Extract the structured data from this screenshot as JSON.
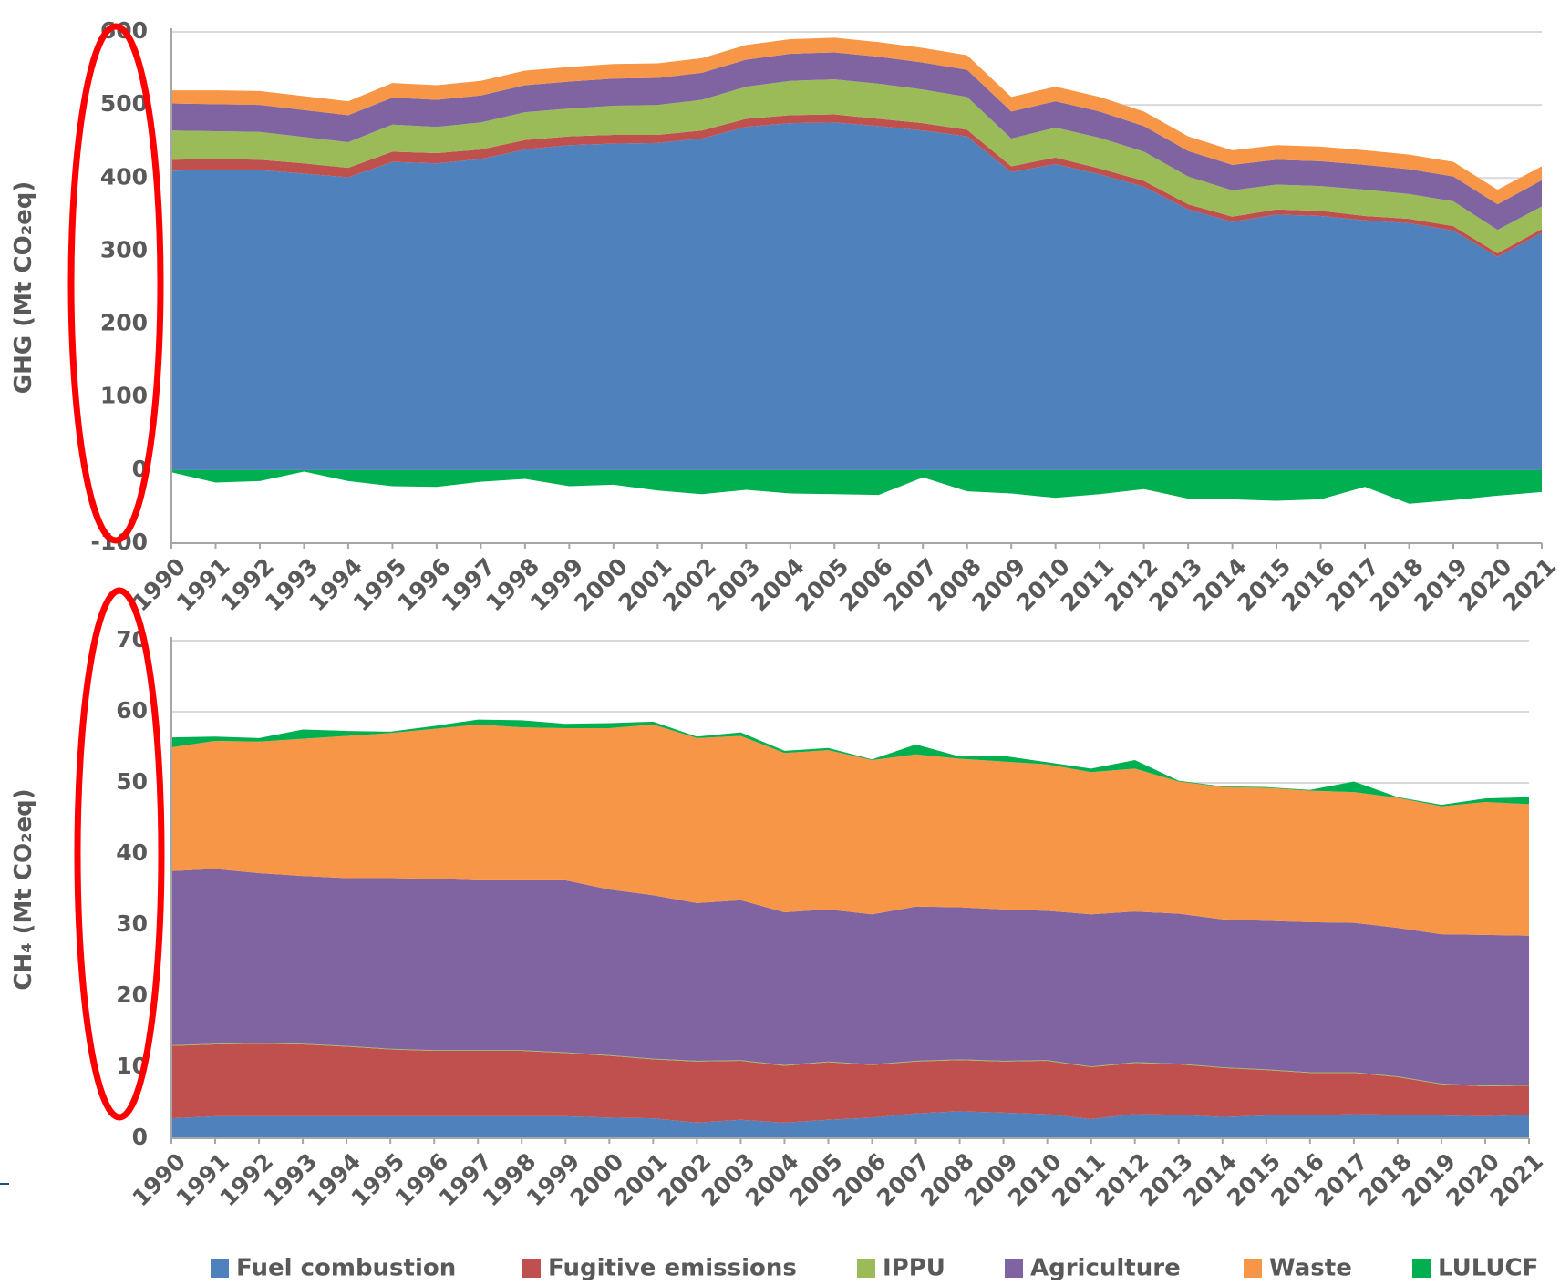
{
  "chart_data": [
    {
      "type": "stacked-area",
      "y_label": "GHG (Mt CO₂eq)",
      "x": [
        1990,
        1991,
        1992,
        1993,
        1994,
        1995,
        1996,
        1997,
        1998,
        1999,
        2000,
        2001,
        2002,
        2003,
        2004,
        2005,
        2006,
        2007,
        2008,
        2009,
        2010,
        2011,
        2012,
        2013,
        2014,
        2015,
        2016,
        2017,
        2018,
        2019,
        2020,
        2021
      ],
      "xlim": [
        1990,
        2021
      ],
      "xticks": [
        1990,
        1991,
        1992,
        1993,
        1994,
        1995,
        1996,
        1997,
        1998,
        1999,
        2000,
        2001,
        2002,
        2003,
        2004,
        2005,
        2006,
        2007,
        2008,
        2009,
        2010,
        2011,
        2012,
        2013,
        2014,
        2015,
        2016,
        2017,
        2018,
        2019,
        2020,
        2021
      ],
      "ylim": [
        -100,
        600
      ],
      "yticks": [
        -100,
        0,
        100,
        200,
        300,
        400,
        500,
        600
      ],
      "grid": true,
      "series": [
        {
          "name": "Fuel combustion",
          "color": "#4f81bd",
          "values": [
            410,
            411,
            411,
            406,
            401,
            422,
            420,
            426,
            439,
            445,
            447,
            448,
            454,
            470,
            475,
            476,
            471,
            465,
            457,
            408,
            419,
            405,
            388,
            357,
            340,
            350,
            348,
            342,
            338,
            328,
            292,
            325
          ]
        },
        {
          "name": "Fugitive emissions",
          "color": "#c0504d",
          "values": [
            15,
            15,
            14,
            14,
            13,
            14,
            14,
            13,
            13,
            12,
            12,
            11,
            11,
            11,
            11,
            11,
            10,
            10,
            9,
            8,
            9,
            8,
            8,
            7,
            7,
            7,
            7,
            6,
            6,
            6,
            5,
            5
          ]
        },
        {
          "name": "IPPU",
          "color": "#9bbb59",
          "values": [
            40,
            38,
            38,
            36,
            35,
            37,
            36,
            37,
            38,
            38,
            40,
            41,
            42,
            44,
            47,
            48,
            48,
            46,
            45,
            38,
            41,
            42,
            40,
            38,
            36,
            34,
            34,
            36,
            34,
            34,
            32,
            31
          ]
        },
        {
          "name": "Agriculture",
          "color": "#8064a2",
          "values": [
            37,
            37,
            37,
            37,
            37,
            37,
            37,
            37,
            37,
            37,
            37,
            37,
            37,
            37,
            37,
            37,
            37,
            37,
            37,
            37,
            36,
            36,
            35,
            35,
            35,
            34,
            34,
            34,
            34,
            34,
            35,
            36
          ]
        },
        {
          "name": "Waste",
          "color": "#f79646",
          "values": [
            18,
            19,
            19,
            19,
            19,
            20,
            20,
            20,
            20,
            20,
            20,
            20,
            20,
            20,
            20,
            20,
            20,
            20,
            20,
            20,
            20,
            20,
            20,
            20,
            20,
            20,
            20,
            20,
            20,
            20,
            20,
            19
          ]
        },
        {
          "name": "LULUCF",
          "color": "#00b050",
          "values": [
            -3,
            -17,
            -15,
            -2,
            -15,
            -22,
            -23,
            -16,
            -12,
            -22,
            -20,
            -28,
            -33,
            -27,
            -32,
            -33,
            -34,
            -10,
            -29,
            -32,
            -38,
            -33,
            -26,
            -39,
            -40,
            -42,
            -40,
            -23,
            -46,
            -41,
            -35,
            -30
          ]
        }
      ]
    },
    {
      "type": "stacked-area",
      "y_label": "CH₄ (Mt CO₂eq)",
      "x": [
        1990,
        1991,
        1992,
        1993,
        1994,
        1995,
        1996,
        1997,
        1998,
        1999,
        2000,
        2001,
        2002,
        2003,
        2004,
        2005,
        2006,
        2007,
        2008,
        2009,
        2010,
        2011,
        2012,
        2013,
        2014,
        2015,
        2016,
        2017,
        2018,
        2019,
        2020,
        2021
      ],
      "xlim": [
        1990,
        2021
      ],
      "xticks": [
        1990,
        1991,
        1992,
        1993,
        1994,
        1995,
        1996,
        1997,
        1998,
        1999,
        2000,
        2001,
        2002,
        2003,
        2004,
        2005,
        2006,
        2007,
        2008,
        2009,
        2010,
        2011,
        2012,
        2013,
        2014,
        2015,
        2016,
        2017,
        2018,
        2019,
        2020,
        2021
      ],
      "ylim": [
        0,
        70
      ],
      "yticks": [
        0,
        10,
        20,
        30,
        40,
        50,
        60,
        70
      ],
      "grid": true,
      "legend": "bottom",
      "series": [
        {
          "name": "Fuel combustion",
          "color": "#4f81bd",
          "values": [
            2.8,
            3.1,
            3.1,
            3.1,
            3.1,
            3.1,
            3.1,
            3.1,
            3.1,
            3.1,
            2.9,
            2.8,
            2.2,
            2.6,
            2.2,
            2.6,
            2.9,
            3.5,
            3.8,
            3.6,
            3.4,
            2.7,
            3.4,
            3.3,
            3.0,
            3.2,
            3.2,
            3.4,
            3.3,
            3.2,
            3.1,
            3.3
          ]
        },
        {
          "name": "Fugitive emissions",
          "color": "#c0504d",
          "values": [
            10.2,
            10.1,
            10.2,
            10.1,
            9.8,
            9.4,
            9.2,
            9.2,
            9.2,
            8.9,
            8.7,
            8.3,
            8.6,
            8.3,
            8.0,
            8.1,
            7.4,
            7.3,
            7.2,
            7.2,
            7.5,
            7.3,
            7.2,
            7.1,
            6.9,
            6.4,
            6.0,
            5.8,
            5.3,
            4.4,
            4.2,
            4.1
          ]
        },
        {
          "name": "IPPU",
          "color": "#9bbb59",
          "values": [
            0.1,
            0.1,
            0.1,
            0.1,
            0.1,
            0.1,
            0.1,
            0.1,
            0.1,
            0.1,
            0.1,
            0.1,
            0.1,
            0.1,
            0.1,
            0.1,
            0.1,
            0.1,
            0.1,
            0.1,
            0.1,
            0.1,
            0.1,
            0.1,
            0.1,
            0.1,
            0.1,
            0.1,
            0.1,
            0.1,
            0.1,
            0.1
          ]
        },
        {
          "name": "Agriculture",
          "color": "#8064a2",
          "values": [
            24.5,
            24.6,
            23.9,
            23.6,
            23.6,
            24.0,
            24.1,
            23.9,
            23.9,
            24.2,
            23.3,
            23.0,
            22.2,
            22.5,
            21.5,
            21.4,
            21.1,
            21.7,
            21.4,
            21.3,
            21.0,
            21.4,
            21.2,
            21.1,
            20.8,
            20.9,
            21.1,
            21.0,
            20.9,
            21.0,
            21.2,
            21.0
          ]
        },
        {
          "name": "Waste",
          "color": "#f79646",
          "values": [
            17.4,
            18.0,
            18.5,
            19.3,
            20.0,
            20.4,
            21.1,
            21.9,
            21.5,
            21.4,
            22.7,
            24.0,
            23.2,
            23.1,
            22.4,
            22.4,
            21.7,
            21.4,
            20.9,
            20.8,
            20.6,
            20.0,
            20.1,
            18.6,
            18.6,
            18.7,
            18.5,
            18.4,
            18.3,
            18.0,
            18.7,
            18.5
          ]
        },
        {
          "name": "LULUCF",
          "color": "#00b050",
          "values": [
            1.4,
            0.6,
            0.5,
            1.3,
            0.7,
            0.2,
            0.4,
            0.7,
            1.0,
            0.6,
            0.7,
            0.4,
            0.2,
            0.5,
            0.3,
            0.3,
            0.1,
            1.4,
            0.3,
            0.8,
            0.3,
            0.5,
            1.2,
            0.1,
            0.1,
            0.1,
            0.1,
            1.5,
            0.1,
            0.2,
            0.5,
            1.0
          ]
        }
      ]
    }
  ]
}
